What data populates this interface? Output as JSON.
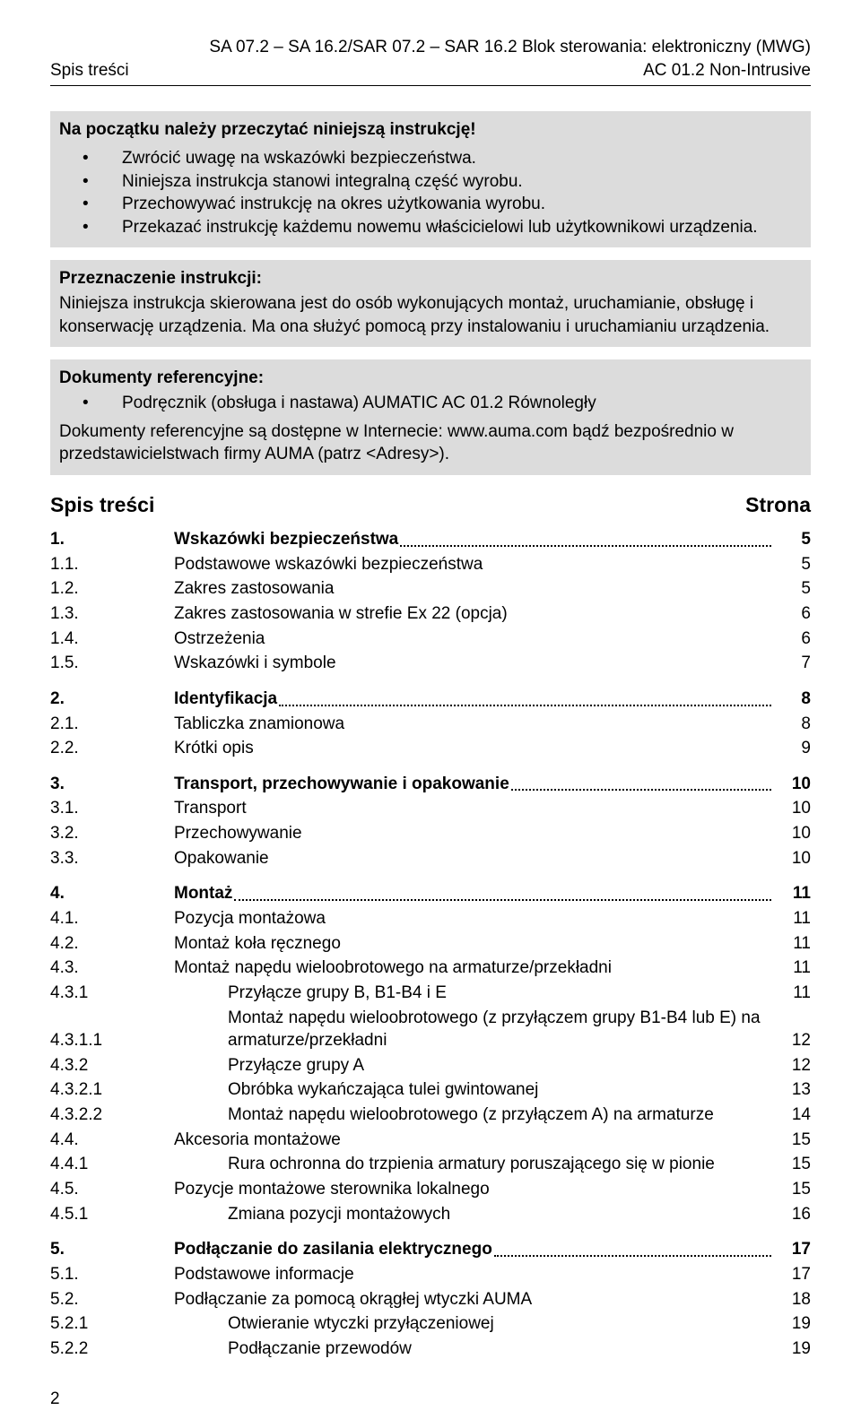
{
  "header": {
    "left": "Spis treści",
    "right_line1": "SA 07.2 – SA 16.2/SAR 07.2 – SAR 16.2 Blok sterowania: elektroniczny (MWG)",
    "right_line2": "AC 01.2 Non-Intrusive"
  },
  "intro": {
    "title": "Na początku należy przeczytać niniejszą instrukcję!",
    "bullets": [
      "Zwrócić uwagę na wskazówki bezpieczeństwa.",
      "Niniejsza instrukcja stanowi integralną część wyrobu.",
      "Przechowywać instrukcję na okres użytkowania wyrobu.",
      "Przekazać instrukcję każdemu nowemu właścicielowi lub użytkownikowi urządzenia."
    ]
  },
  "purpose": {
    "heading": "Przeznaczenie instrukcji:",
    "body": "Niniejsza instrukcja skierowana jest do osób wykonujących montaż, uruchamianie, obsługę i konserwację urządzenia. Ma ona służyć pomocą przy instalowaniu i uruchamianiu urządzenia."
  },
  "refs": {
    "heading": "Dokumenty referencyjne:",
    "bullet": "Podręcznik (obsługa i nastawa) AUMATIC AC 01.2 Równoległy",
    "footer": "Dokumenty referencyjne są dostępne w Internecie: www.auma.com bądź bezpośrednio w przedstawicielstwach firmy AUMA (patrz <Adresy>)."
  },
  "toc_header": {
    "left": "Spis treści",
    "right": "Strona"
  },
  "toc": [
    {
      "group": [
        {
          "num": "1.",
          "title": "Wskazówki  bezpieczeństwa",
          "page": "5",
          "bold": true,
          "dotted": true
        },
        {
          "num": "1.1.",
          "title": "Podstawowe wskazówki bezpieczeństwa",
          "page": "5"
        },
        {
          "num": "1.2.",
          "title": "Zakres zastosowania",
          "page": "5"
        },
        {
          "num": "1.3.",
          "title": "Zakres zastosowania w strefie Ex 22 (opcja)",
          "page": "6"
        },
        {
          "num": "1.4.",
          "title": "Ostrzeżenia",
          "page": "6"
        },
        {
          "num": "1.5.",
          "title": "Wskazówki i symbole",
          "page": "7"
        }
      ]
    },
    {
      "group": [
        {
          "num": "2.",
          "title": "Identyfikacja",
          "page": "8",
          "bold": true,
          "dotted": true
        },
        {
          "num": "2.1.",
          "title": "Tabliczka znamionowa",
          "page": "8"
        },
        {
          "num": "2.2.",
          "title": "Krótki opis",
          "page": "9"
        }
      ]
    },
    {
      "group": [
        {
          "num": "3.",
          "title": "Transport, przechowywanie i opakowanie",
          "page": "10",
          "bold": true,
          "dotted": true
        },
        {
          "num": "3.1.",
          "title": "Transport",
          "page": "10"
        },
        {
          "num": "3.2.",
          "title": "Przechowywanie",
          "page": "10"
        },
        {
          "num": "3.3.",
          "title": "Opakowanie",
          "page": "10"
        }
      ]
    },
    {
      "group": [
        {
          "num": "4.",
          "title": "Montaż",
          "page": "11",
          "bold": true,
          "dotted": true
        },
        {
          "num": "4.1.",
          "title": "Pozycja montażowa",
          "page": "11"
        },
        {
          "num": "4.2.",
          "title": "Montaż koła ręcznego",
          "page": "11"
        },
        {
          "num": "4.3.",
          "title": "Montaż napędu wieloobrotowego na armaturze/przekładni",
          "page": "11"
        },
        {
          "num": "4.3.1",
          "title": "Przyłącze grupy B, B1-B4 i E",
          "page": "11",
          "indent": true
        },
        {
          "num": "4.3.1.1",
          "title": "Montaż napędu wieloobrotowego (z przyłączem grupy B1-B4 lub E) na armaturze/przekładni",
          "page": "12",
          "indent": true
        },
        {
          "num": "4.3.2",
          "title": "Przyłącze grupy A",
          "page": "12",
          "indent": true
        },
        {
          "num": "4.3.2.1",
          "title": "Obróbka wykańczająca tulei gwintowanej",
          "page": "13",
          "indent": true
        },
        {
          "num": "4.3.2.2",
          "title": "Montaż napędu wieloobrotowego (z przyłączem A) na armaturze",
          "page": "14",
          "indent": true
        },
        {
          "num": "4.4.",
          "title": "Akcesoria montażowe",
          "page": "15"
        },
        {
          "num": "4.4.1",
          "title": "Rura ochronna do trzpienia armatury poruszającego się w pionie",
          "page": "15",
          "indent": true
        },
        {
          "num": "4.5.",
          "title": "Pozycje montażowe sterownika lokalnego",
          "page": "15"
        },
        {
          "num": "4.5.1",
          "title": "Zmiana pozycji montażowych",
          "page": "16",
          "indent": true
        }
      ]
    },
    {
      "group": [
        {
          "num": "5.",
          "title": "Podłączanie do zasilania elektrycznego",
          "page": "17",
          "bold": true,
          "dotted": true
        },
        {
          "num": "5.1.",
          "title": "Podstawowe informacje",
          "page": "17"
        },
        {
          "num": "5.2.",
          "title": "Podłączanie za pomocą okrągłej wtyczki AUMA",
          "page": "18"
        },
        {
          "num": "5.2.1",
          "title": "Otwieranie wtyczki przyłączeniowej",
          "page": "19",
          "indent": true
        },
        {
          "num": "5.2.2",
          "title": "Podłączanie przewodów",
          "page": "19",
          "indent": true
        }
      ]
    }
  ],
  "footer_page": "2"
}
